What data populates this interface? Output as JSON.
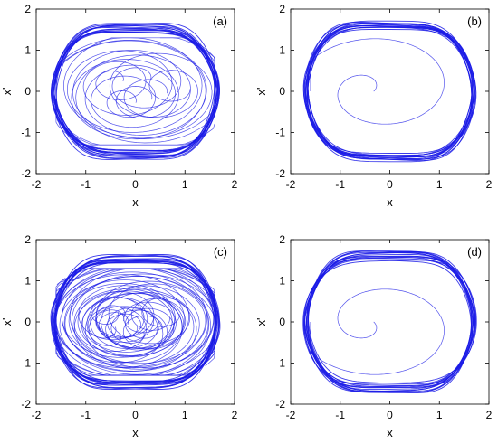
{
  "figure": {
    "line_color": "#1a1ae6",
    "panel_count": 4
  },
  "chart_data": [
    {
      "type": "line",
      "label": "(a)",
      "xlabel": "x",
      "ylabel": "x'",
      "xlim": [
        -2,
        2
      ],
      "ylim": [
        -2,
        2
      ],
      "xticks": [
        "-2",
        "-1",
        "0",
        "1",
        "2"
      ],
      "yticks": [
        "-2",
        "-1",
        "0",
        "1",
        "2"
      ],
      "grid": false,
      "orbit": {
        "x_amplitude": 1.65,
        "y_amplitude": 1.3,
        "neck": 0.18,
        "laps": 14,
        "transient": "wide"
      }
    },
    {
      "type": "line",
      "label": "(b)",
      "xlabel": "x",
      "ylabel": "x'",
      "xlim": [
        -2,
        2
      ],
      "ylim": [
        -2,
        2
      ],
      "xticks": [
        "-2",
        "-1",
        "0",
        "1",
        "2"
      ],
      "yticks": [
        "-2",
        "-1",
        "0",
        "1",
        "2"
      ],
      "grid": false,
      "orbit": {
        "x_amplitude": 1.7,
        "y_amplitude": 1.4,
        "neck": 0.15,
        "laps": 14,
        "transient": "single"
      }
    },
    {
      "type": "line",
      "label": "(c)",
      "xlabel": "x",
      "ylabel": "x'",
      "xlim": [
        -2,
        2
      ],
      "ylim": [
        -2,
        2
      ],
      "xticks": [
        "-2",
        "-1",
        "0",
        "1",
        "2"
      ],
      "yticks": [
        "-2",
        "-1",
        "0",
        "1",
        "2"
      ],
      "grid": false,
      "orbit": {
        "x_amplitude": 1.65,
        "y_amplitude": 1.3,
        "neck": 0.18,
        "laps": 14,
        "transient": "dense"
      }
    },
    {
      "type": "line",
      "label": "(d)",
      "xlabel": "x",
      "ylabel": "x'",
      "xlim": [
        -2,
        2
      ],
      "ylim": [
        -2,
        2
      ],
      "xticks": [
        "-2",
        "-1",
        "0",
        "1",
        "2"
      ],
      "yticks": [
        "-2",
        "-1",
        "0",
        "1",
        "2"
      ],
      "grid": false,
      "orbit": {
        "x_amplitude": 1.7,
        "y_amplitude": 1.4,
        "neck": 0.15,
        "laps": 14,
        "transient": "single"
      }
    }
  ]
}
